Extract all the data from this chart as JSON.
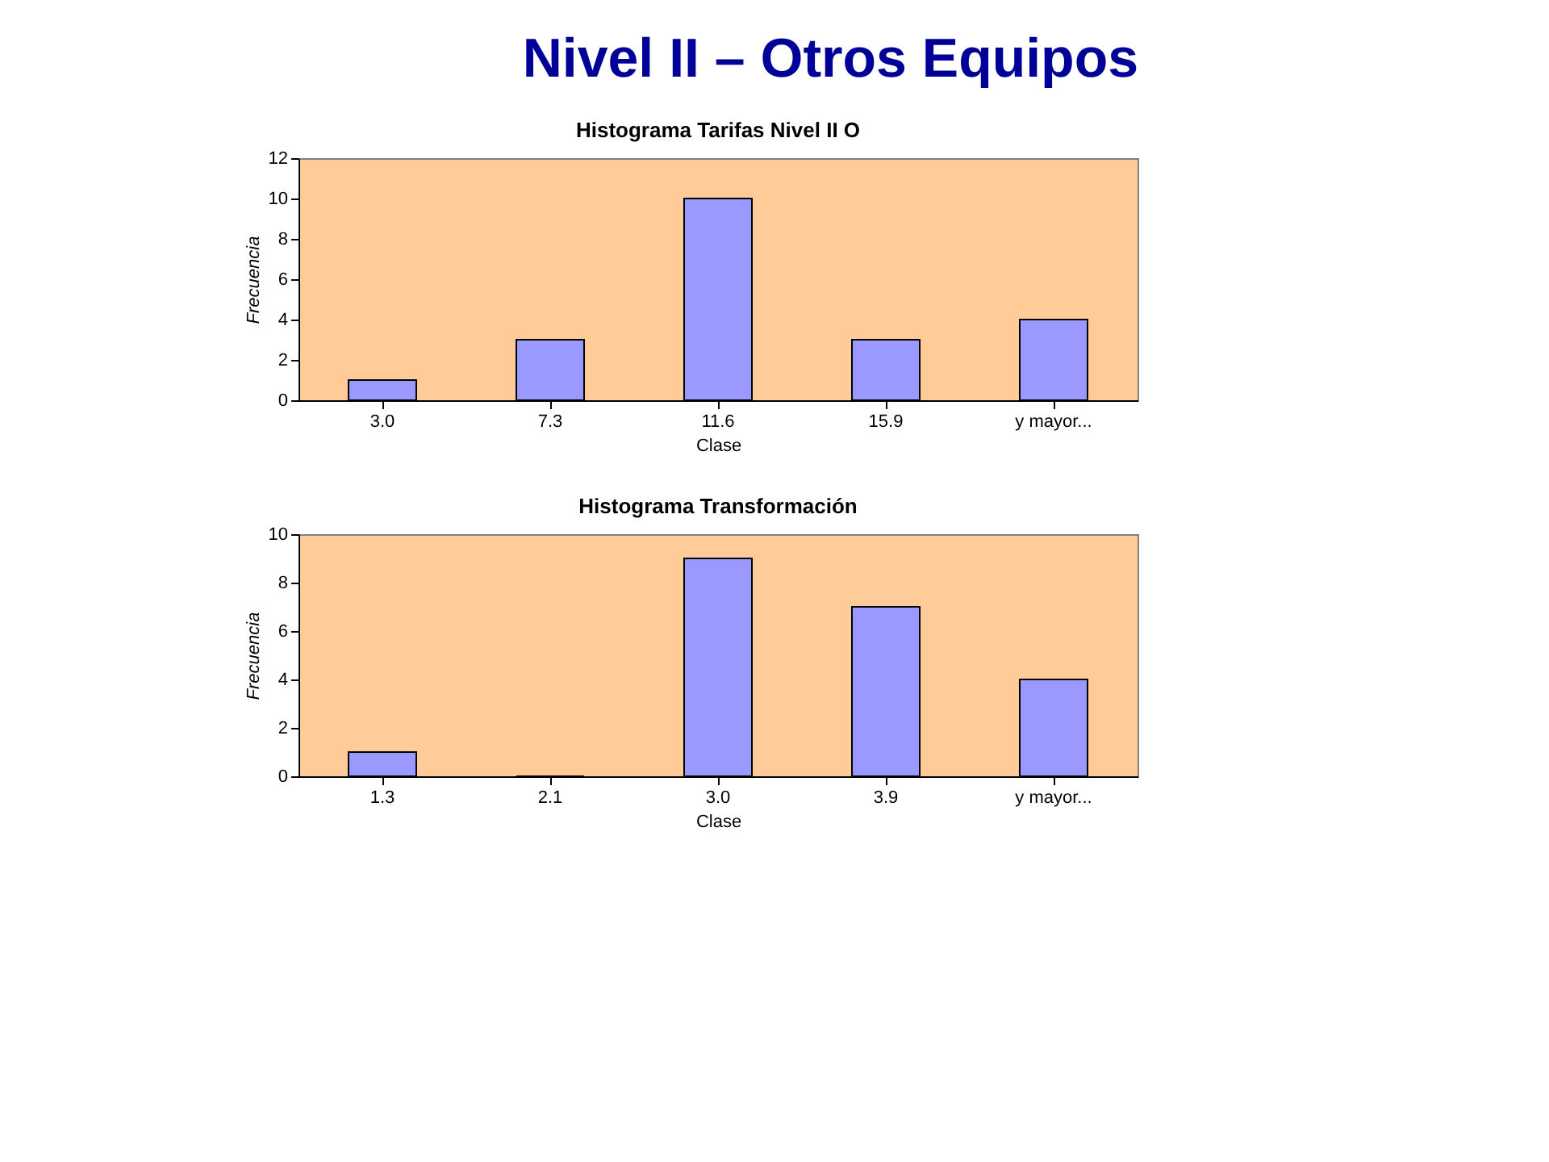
{
  "chart_data": [
    {
      "type": "bar",
      "title": "Histograma Tarifas Nivel II O",
      "xlabel": "Clase",
      "ylabel": "Frecuencia",
      "categories": [
        "3.0",
        "7.3",
        "11.6",
        "15.9",
        "y mayor..."
      ],
      "values": [
        1,
        3,
        10,
        3,
        4
      ],
      "color": "#9999ff",
      "ylim": [
        0,
        12
      ],
      "yticks": [
        0,
        2,
        4,
        6,
        8,
        10,
        12
      ],
      "grid": false,
      "annotations": [
        "Nivel II – Otros Equipos"
      ]
    },
    {
      "type": "bar",
      "title": "Histograma Transformación",
      "xlabel": "Clase",
      "ylabel": "Frecuencia",
      "categories": [
        "1.3",
        "2.1",
        "3.0",
        "3.9",
        "y mayor..."
      ],
      "values": [
        1,
        0,
        9,
        7,
        4
      ],
      "color": "#9999ff",
      "ylim": [
        0,
        10
      ],
      "yticks": [
        0,
        2,
        4,
        6,
        8,
        10
      ],
      "grid": false
    }
  ]
}
